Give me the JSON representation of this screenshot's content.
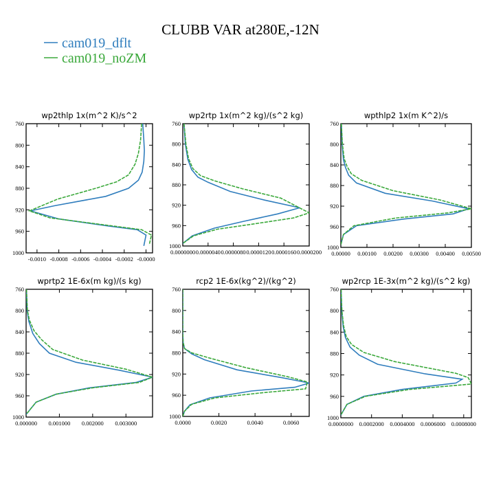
{
  "title": "CLUBB VAR at280E,-12N",
  "legend": [
    {
      "name": "cam019_dflt",
      "color": "#2f7dbd"
    },
    {
      "name": "cam019_noZM",
      "color": "#3aa83a"
    }
  ],
  "chart_data": [
    {
      "type": "line",
      "title": "wp2thlp  1x(m^2 K)/s^2",
      "xlim": [
        -0.0011,
        6e-05
      ],
      "ylim": [
        760,
        1000
      ],
      "y_reversed": true,
      "yticks": [
        {
          "v": 760,
          "label": "760"
        },
        {
          "v": 800,
          "label": "800"
        },
        {
          "v": 840,
          "label": "840"
        },
        {
          "v": 880,
          "label": "880"
        },
        {
          "v": 920,
          "label": "920"
        },
        {
          "v": 960,
          "label": "960"
        },
        {
          "v": 1000,
          "label": "1000"
        }
      ],
      "xticks": [
        {
          "v": -0.001,
          "label": "-0.0010"
        },
        {
          "v": -0.0008,
          "label": "-0.0008"
        },
        {
          "v": -0.0006,
          "label": "-0.0006"
        },
        {
          "v": -0.0004,
          "label": "-0.0004"
        },
        {
          "v": -0.0002,
          "label": "-0.0002"
        },
        {
          "v": 0,
          "label": "-0.0000"
        }
      ],
      "series": [
        {
          "name": "cam019_dflt",
          "x": [
            -3e-05,
            -2e-05,
            -1.5e-05,
            -2e-05,
            -3.5e-05,
            -7e-05,
            -0.00016,
            -0.00037,
            -0.00083,
            -0.00106,
            -0.0008,
            -0.00035,
            -8e-05,
            0.0,
            -2e-05
          ],
          "y": [
            760,
            790,
            810,
            830,
            850,
            865,
            880,
            895,
            912,
            922,
            937,
            950,
            957,
            967,
            987
          ]
        },
        {
          "name": "cam019_noZM",
          "x": [
            -4e-05,
            -5e-05,
            -7e-05,
            -0.0001,
            -0.00016,
            -0.00027,
            -0.00046,
            -0.00081,
            -0.00107,
            -0.00088,
            -0.00042,
            -4e-05,
            5e-05,
            3e-05
          ],
          "y": [
            760,
            790,
            815,
            835,
            855,
            868,
            880,
            900,
            922,
            935,
            947,
            957,
            967,
            985
          ]
        }
      ]
    },
    {
      "type": "line",
      "title": "wp2rtp  1x(m^2 kg)/(s^2 kg)",
      "xlim": [
        0,
        2e-05
      ],
      "ylim": [
        760,
        1000
      ],
      "y_reversed": true,
      "yticks": [
        {
          "v": 760,
          "label": "760"
        },
        {
          "v": 800,
          "label": "800"
        },
        {
          "v": 840,
          "label": "840"
        },
        {
          "v": 880,
          "label": "880"
        },
        {
          "v": 920,
          "label": "920"
        },
        {
          "v": 960,
          "label": "960"
        },
        {
          "v": 1000,
          "label": "1000"
        }
      ],
      "xticks": [
        {
          "v": 0,
          "label": "0.0000000"
        },
        {
          "v": 4e-06,
          "label": "0.0000040"
        },
        {
          "v": 8e-06,
          "label": "0.0000080"
        },
        {
          "v": 1.2e-05,
          "label": "0.0000120"
        },
        {
          "v": 1.6e-05,
          "label": "0.0000160"
        },
        {
          "v": 2e-05,
          "label": "0.0000200"
        }
      ],
      "series": [
        {
          "name": "cam019_dflt",
          "x": [
            2e-07,
            4e-07,
            8e-07,
            1.4e-06,
            2.4e-06,
            4e-06,
            7.5e-06,
            1.3e-05,
            1.85e-05,
            1.5e-05,
            9.5e-06,
            5e-06,
            1.5e-06,
            0.0
          ],
          "y": [
            760,
            800,
            830,
            850,
            865,
            875,
            893,
            910,
            925,
            937,
            952,
            965,
            980,
            995
          ]
        },
        {
          "name": "cam019_noZM",
          "x": [
            2e-07,
            5e-07,
            9e-07,
            1.6e-06,
            2.8e-06,
            5e-06,
            9.5e-06,
            1.55e-05,
            2e-05,
            1.75e-05,
            1.05e-05,
            5.5e-06,
            1.7e-06,
            0.0
          ],
          "y": [
            760,
            800,
            828,
            848,
            862,
            872,
            888,
            906,
            935,
            945,
            958,
            967,
            980,
            995
          ]
        }
      ]
    },
    {
      "type": "line",
      "title": "wpthlp2  1x(m K^2)/s",
      "xlim": [
        0,
        0.005
      ],
      "ylim": [
        760,
        1000
      ],
      "y_reversed": true,
      "yticks": [
        {
          "v": 760,
          "label": "760"
        },
        {
          "v": 800,
          "label": "800"
        },
        {
          "v": 840,
          "label": "840"
        },
        {
          "v": 880,
          "label": "880"
        },
        {
          "v": 920,
          "label": "920"
        },
        {
          "v": 960,
          "label": "960"
        },
        {
          "v": 1000,
          "label": "1000"
        }
      ],
      "xticks": [
        {
          "v": 0,
          "label": "0.00000"
        },
        {
          "v": 0.001,
          "label": "0.00100"
        },
        {
          "v": 0.002,
          "label": "0.00200"
        },
        {
          "v": 0.003,
          "label": "0.00300"
        },
        {
          "v": 0.004,
          "label": "0.00400"
        },
        {
          "v": 0.005,
          "label": "0.00500"
        }
      ],
      "series": [
        {
          "name": "cam019_dflt",
          "x": [
            2e-05,
            5e-05,
            0.0001,
            0.00018,
            0.0003,
            0.0006,
            0.0017,
            0.0035,
            0.0049,
            0.0043,
            0.0024,
            0.0006,
            0.0001,
            0.0
          ],
          "y": [
            760,
            800,
            830,
            845,
            860,
            875,
            895,
            910,
            925,
            935,
            945,
            958,
            975,
            995
          ]
        },
        {
          "name": "cam019_noZM",
          "x": [
            2e-05,
            6e-05,
            0.00013,
            0.00024,
            0.0004,
            0.0008,
            0.002,
            0.0038,
            0.005,
            0.0041,
            0.0021,
            0.0005,
            0.0001,
            0.0
          ],
          "y": [
            760,
            800,
            828,
            843,
            857,
            870,
            890,
            908,
            925,
            933,
            943,
            958,
            975,
            995
          ]
        }
      ]
    },
    {
      "type": "line",
      "title": "wprtp2  1E-6x(m kg)/(s kg)",
      "xlim": [
        0,
        0.0038
      ],
      "ylim": [
        760,
        1000
      ],
      "y_reversed": true,
      "yticks": [
        {
          "v": 760,
          "label": "760"
        },
        {
          "v": 800,
          "label": "800"
        },
        {
          "v": 840,
          "label": "840"
        },
        {
          "v": 880,
          "label": "880"
        },
        {
          "v": 920,
          "label": "920"
        },
        {
          "v": 960,
          "label": "960"
        },
        {
          "v": 1000,
          "label": "1000"
        }
      ],
      "xticks": [
        {
          "v": 0,
          "label": "0.000000"
        },
        {
          "v": 0.001,
          "label": "0.001000"
        },
        {
          "v": 0.002,
          "label": "0.002000"
        },
        {
          "v": 0.003,
          "label": "0.003000"
        }
      ],
      "series": [
        {
          "name": "cam019_dflt",
          "x": [
            1e-05,
            3e-05,
            8e-05,
            0.0002,
            0.0004,
            0.0007,
            0.0015,
            0.0028,
            0.0038,
            0.0033,
            0.0019,
            0.0009,
            0.0003,
            0.0
          ],
          "y": [
            760,
            800,
            820,
            843,
            862,
            880,
            897,
            912,
            925,
            935,
            945,
            957,
            972,
            995
          ]
        },
        {
          "name": "cam019_noZM",
          "x": [
            1e-05,
            4e-05,
            0.0001,
            0.00024,
            0.00047,
            0.0008,
            0.0017,
            0.003,
            0.0038,
            0.0034,
            0.002,
            0.0009,
            0.0003,
            0.0
          ],
          "y": [
            760,
            800,
            818,
            838,
            855,
            873,
            893,
            910,
            925,
            935,
            945,
            957,
            972,
            995
          ]
        }
      ]
    },
    {
      "type": "line",
      "title": "rcp2  1E-6x(kg^2)/(kg^2)",
      "xlim": [
        0,
        0.007
      ],
      "ylim": [
        760,
        1000
      ],
      "y_reversed": true,
      "yticks": [
        {
          "v": 760,
          "label": "760"
        },
        {
          "v": 800,
          "label": "800"
        },
        {
          "v": 840,
          "label": "840"
        },
        {
          "v": 880,
          "label": "880"
        },
        {
          "v": 920,
          "label": "920"
        },
        {
          "v": 960,
          "label": "960"
        },
        {
          "v": 1000,
          "label": "1000"
        }
      ],
      "xticks": [
        {
          "v": 0,
          "label": "0.0000"
        },
        {
          "v": 0.002,
          "label": "0.0020"
        },
        {
          "v": 0.004,
          "label": "0.0040"
        },
        {
          "v": 0.006,
          "label": "0.0060"
        }
      ],
      "series": [
        {
          "name": "cam019_dflt",
          "x": [
            0.0,
            0.0,
            2e-05,
            0.0001,
            0.0005,
            0.0012,
            0.003,
            0.0055,
            0.007,
            0.0062,
            0.0038,
            0.0015,
            0.0004,
            0.0001,
            0.0
          ],
          "y": [
            760,
            840,
            860,
            872,
            882,
            893,
            912,
            927,
            937,
            945,
            952,
            965,
            978,
            990,
            1000
          ]
        },
        {
          "name": "cam019_noZM",
          "x": [
            0.0,
            0.0,
            2e-05,
            0.0001,
            0.0005,
            0.0015,
            0.0035,
            0.0058,
            0.0069,
            0.0068,
            0.0045,
            0.0018,
            0.0005,
            0.0001,
            0.0
          ],
          "y": [
            760,
            840,
            860,
            872,
            880,
            890,
            908,
            925,
            935,
            948,
            955,
            965,
            977,
            990,
            1000
          ]
        }
      ]
    },
    {
      "type": "line",
      "title": "wp2rcp  1E-3x(m^2 kg)/(s^2 kg)",
      "xlim": [
        0,
        0.00085
      ],
      "ylim": [
        760,
        1000
      ],
      "y_reversed": true,
      "yticks": [
        {
          "v": 760,
          "label": "760"
        },
        {
          "v": 800,
          "label": "800"
        },
        {
          "v": 840,
          "label": "840"
        },
        {
          "v": 880,
          "label": "880"
        },
        {
          "v": 920,
          "label": "920"
        },
        {
          "v": 960,
          "label": "960"
        },
        {
          "v": 1000,
          "label": "1000"
        }
      ],
      "xticks": [
        {
          "v": 0,
          "label": "0.0000000"
        },
        {
          "v": 0.0002,
          "label": "0.0002000"
        },
        {
          "v": 0.0004,
          "label": "0.0004000"
        },
        {
          "v": 0.0006,
          "label": "0.0006000"
        },
        {
          "v": 0.0008,
          "label": "0.0008000"
        }
      ],
      "series": [
        {
          "name": "cam019_dflt",
          "x": [
            2e-06,
            6e-06,
            1.5e-05,
            3e-05,
            6e-05,
            0.00012,
            0.00024,
            0.00055,
            0.00079,
            0.00075,
            0.0004,
            0.00015,
            4e-05,
            0.0
          ],
          "y": [
            760,
            800,
            830,
            850,
            868,
            883,
            900,
            918,
            928,
            935,
            947,
            960,
            975,
            995
          ]
        },
        {
          "name": "cam019_noZM",
          "x": [
            2e-06,
            7e-06,
            1.8e-05,
            3.5e-05,
            7e-05,
            0.00015,
            0.00035,
            0.00075,
            0.00083,
            0.00085,
            0.00045,
            0.00016,
            4e-05,
            0.0
          ],
          "y": [
            760,
            800,
            828,
            848,
            863,
            878,
            895,
            917,
            925,
            937,
            947,
            960,
            975,
            995
          ]
        }
      ]
    }
  ]
}
